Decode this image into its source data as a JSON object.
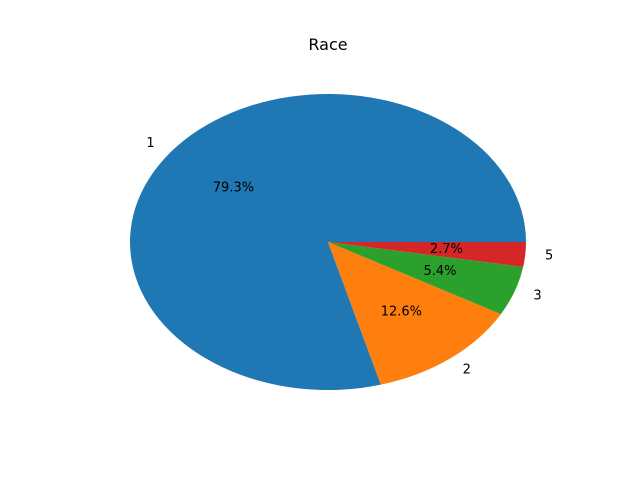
{
  "chart_data": {
    "type": "pie",
    "title": "Race",
    "labels": [
      "1",
      "2",
      "3",
      "5"
    ],
    "values": [
      79.3,
      12.6,
      5.4,
      2.7
    ],
    "percent_labels": [
      "79.3%",
      "12.6%",
      "5.4%",
      "2.7%"
    ],
    "colors": [
      "#1f77b4",
      "#ff7f0e",
      "#2ca02c",
      "#d62728"
    ],
    "start_angle_deg": 0,
    "direction": "counterclockwise",
    "legend": "none"
  }
}
